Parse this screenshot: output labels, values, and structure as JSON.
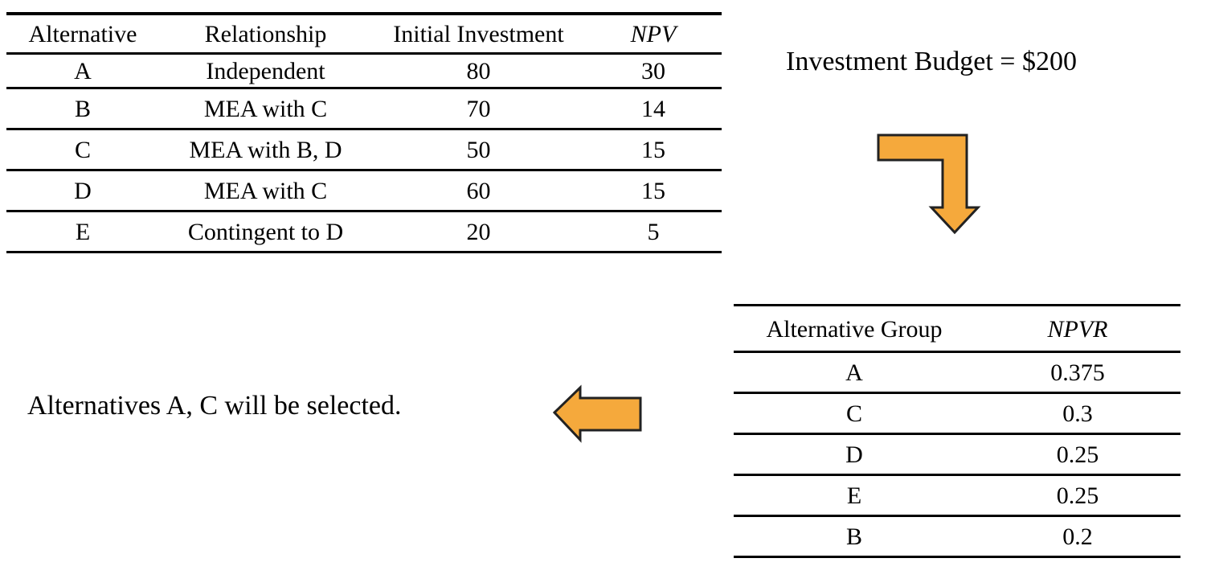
{
  "labels": {
    "budget": "Investment Budget = $200",
    "conclusion": "Alternatives A, C will be selected."
  },
  "alternatives_table": {
    "headers": [
      "Alternative",
      "Relationship",
      "Initial Investment",
      "NPV"
    ],
    "rows": [
      [
        "A",
        "Independent",
        "80",
        "30"
      ],
      [
        "B",
        "MEA with C",
        "70",
        "14"
      ],
      [
        "C",
        "MEA with B, D",
        "50",
        "15"
      ],
      [
        "D",
        "MEA with C",
        "60",
        "15"
      ],
      [
        "E",
        "Contingent to D",
        "20",
        "5"
      ]
    ]
  },
  "npvr_table": {
    "headers": [
      "Alternative Group",
      "NPVR"
    ],
    "rows": [
      [
        "A",
        "0.375"
      ],
      [
        "C",
        "0.3"
      ],
      [
        "D",
        "0.25"
      ],
      [
        "E",
        "0.25"
      ],
      [
        "B",
        "0.2"
      ]
    ]
  },
  "icons": {
    "bent_arrow": "down-bent-arrow",
    "left_arrow": "left-arrow"
  },
  "colors": {
    "arrow_fill": "#F5A93C",
    "arrow_outline": "#222222",
    "table_line": "#000000",
    "text": "#000000",
    "background": "#FFFFFF"
  }
}
